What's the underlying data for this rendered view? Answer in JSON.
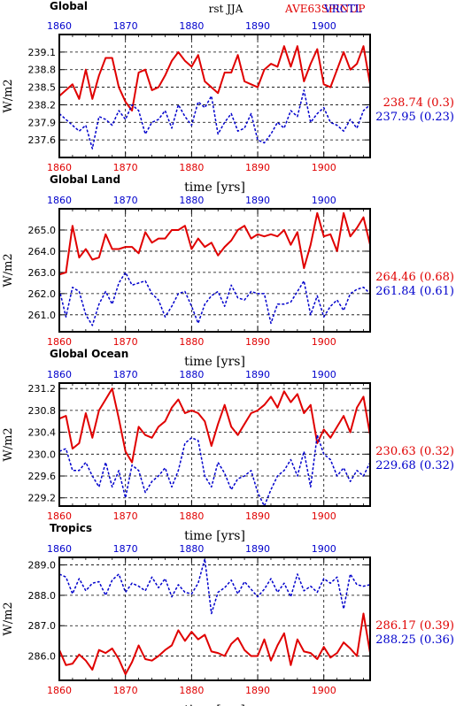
{
  "header": {
    "left_title": "Global",
    "center_title": "rst  JJA",
    "legend_red": "AVE63SPINUP",
    "legend_blue": "VRCTL"
  },
  "colors": {
    "red": "#e00000",
    "blue": "#0000cc",
    "black": "#000000"
  },
  "chart_data": [
    {
      "type": "line",
      "title": "Global",
      "xlabel": "time [yrs]",
      "ylabel": "W/m2",
      "xlim": [
        1860,
        1907
      ],
      "ylim": [
        237.3,
        239.4
      ],
      "x_ticks": [
        1860,
        1870,
        1880,
        1890,
        1900
      ],
      "y_ticks": [
        "237.6",
        "237.9",
        "238.2",
        "238.5",
        "238.8",
        "239.1"
      ],
      "grid": true,
      "stats": [
        {
          "color": "red",
          "text": "238.74 (0.3)"
        },
        {
          "color": "blue",
          "text": "237.95 (0.23)"
        }
      ],
      "series": [
        {
          "color": "red",
          "style": "solid",
          "start": 1860,
          "values": [
            238.35,
            238.45,
            238.55,
            238.3,
            238.8,
            238.3,
            238.7,
            239.0,
            239.0,
            238.5,
            238.25,
            238.1,
            238.75,
            238.8,
            238.45,
            238.5,
            238.7,
            238.95,
            239.1,
            238.95,
            238.85,
            239.05,
            238.6,
            238.5,
            238.4,
            238.75,
            238.75,
            239.05,
            238.6,
            238.55,
            238.5,
            238.8,
            238.9,
            238.85,
            239.2,
            238.85,
            239.2,
            238.6,
            238.9,
            239.15,
            238.55,
            238.5,
            238.8,
            239.1,
            238.8,
            238.9,
            239.2,
            238.55
          ]
        },
        {
          "color": "blue",
          "style": "dashed",
          "start": 1860,
          "values": [
            238.05,
            237.95,
            237.85,
            237.75,
            237.85,
            237.45,
            238.0,
            237.95,
            237.85,
            238.1,
            237.95,
            238.2,
            238.1,
            237.7,
            237.9,
            237.95,
            238.1,
            237.8,
            238.2,
            238.0,
            237.85,
            238.25,
            238.15,
            238.35,
            237.7,
            237.9,
            238.05,
            237.75,
            237.8,
            238.05,
            237.6,
            237.55,
            237.7,
            237.9,
            237.8,
            238.1,
            238.0,
            238.45,
            237.9,
            238.05,
            238.15,
            237.9,
            237.85,
            237.75,
            237.95,
            237.8,
            238.1,
            238.2
          ]
        }
      ]
    },
    {
      "type": "line",
      "title": "Global Land",
      "xlabel": "time [yrs]",
      "ylabel": "W/m2",
      "xlim": [
        1860,
        1907
      ],
      "ylim": [
        260.2,
        266.0
      ],
      "x_ticks": [
        1860,
        1870,
        1880,
        1890,
        1900
      ],
      "y_ticks": [
        "261.0",
        "262.0",
        "263.0",
        "264.0",
        "265.0"
      ],
      "grid": true,
      "stats": [
        {
          "color": "red",
          "text": "264.46 (0.68)"
        },
        {
          "color": "blue",
          "text": "261.84 (0.61)"
        }
      ],
      "series": [
        {
          "color": "red",
          "style": "solid",
          "start": 1860,
          "values": [
            262.9,
            263.0,
            265.2,
            263.7,
            264.1,
            263.6,
            263.7,
            264.8,
            264.1,
            264.1,
            264.2,
            264.2,
            263.9,
            264.9,
            264.4,
            264.6,
            264.6,
            265.0,
            265.0,
            265.2,
            264.1,
            264.6,
            264.2,
            264.4,
            263.8,
            264.2,
            264.5,
            265.0,
            265.2,
            264.6,
            264.8,
            264.7,
            264.8,
            264.7,
            265.0,
            264.3,
            264.9,
            263.2,
            264.3,
            265.8,
            264.7,
            264.8,
            264.0,
            265.8,
            264.7,
            265.1,
            265.6,
            264.3
          ]
        },
        {
          "color": "blue",
          "style": "dashed",
          "start": 1860,
          "values": [
            262.2,
            260.9,
            262.3,
            262.1,
            261.0,
            260.5,
            261.5,
            262.1,
            261.5,
            262.5,
            263.0,
            262.4,
            262.5,
            262.6,
            262.0,
            261.7,
            260.9,
            261.4,
            262.0,
            262.1,
            261.4,
            260.6,
            261.5,
            261.9,
            262.1,
            261.4,
            262.4,
            261.8,
            261.7,
            262.1,
            262.0,
            262.0,
            260.6,
            261.5,
            261.5,
            261.6,
            262.1,
            262.6,
            261.0,
            261.9,
            260.9,
            261.4,
            261.7,
            261.2,
            262.0,
            262.2,
            262.3,
            262.0
          ]
        }
      ]
    },
    {
      "type": "line",
      "title": "Global Ocean",
      "xlabel": "time [yrs]",
      "ylabel": "W/m2",
      "xlim": [
        1860,
        1907
      ],
      "ylim": [
        229.05,
        231.3
      ],
      "x_ticks": [
        1860,
        1870,
        1880,
        1890,
        1900
      ],
      "y_ticks": [
        "229.2",
        "229.6",
        "230.0",
        "230.4",
        "230.8",
        "231.2"
      ],
      "grid": true,
      "stats": [
        {
          "color": "red",
          "text": "230.63 (0.32)"
        },
        {
          "color": "blue",
          "text": "229.68 (0.32)"
        }
      ],
      "series": [
        {
          "color": "red",
          "style": "solid",
          "start": 1860,
          "values": [
            230.65,
            230.7,
            230.1,
            230.2,
            230.75,
            230.3,
            230.8,
            231.0,
            231.2,
            230.65,
            230.05,
            229.85,
            230.5,
            230.35,
            230.3,
            230.5,
            230.6,
            230.85,
            231.0,
            230.75,
            230.8,
            230.75,
            230.6,
            230.15,
            230.55,
            230.9,
            230.5,
            230.35,
            230.55,
            230.75,
            230.8,
            230.9,
            231.05,
            230.85,
            231.15,
            230.95,
            231.1,
            230.75,
            230.9,
            230.2,
            230.45,
            230.3,
            230.5,
            230.7,
            230.4,
            230.85,
            231.05,
            230.35
          ]
        },
        {
          "color": "blue",
          "style": "dashed",
          "start": 1860,
          "values": [
            230.05,
            230.1,
            229.7,
            229.7,
            229.85,
            229.6,
            229.4,
            229.85,
            229.4,
            229.7,
            229.2,
            229.8,
            229.7,
            229.3,
            229.5,
            229.6,
            229.75,
            229.4,
            229.7,
            230.2,
            230.3,
            230.25,
            229.6,
            229.4,
            229.85,
            229.65,
            229.35,
            229.55,
            229.6,
            229.7,
            229.3,
            229.05,
            229.35,
            229.6,
            229.7,
            229.9,
            229.6,
            230.05,
            229.4,
            230.35,
            230.0,
            229.9,
            229.6,
            229.75,
            229.5,
            229.7,
            229.6,
            229.85
          ]
        }
      ]
    },
    {
      "type": "line",
      "title": "Tropics",
      "xlabel": "time [yrs]",
      "ylabel": "W/m2",
      "xlim": [
        1860,
        1907
      ],
      "ylim": [
        285.2,
        289.25
      ],
      "x_ticks": [
        1860,
        1870,
        1880,
        1890,
        1900
      ],
      "y_ticks": [
        "286.0",
        "287.0",
        "288.0",
        "289.0"
      ],
      "grid": true,
      "stats": [
        {
          "color": "red",
          "text": "286.17 (0.39)"
        },
        {
          "color": "blue",
          "text": "288.25 (0.36)"
        }
      ],
      "series": [
        {
          "color": "red",
          "style": "solid",
          "start": 1860,
          "values": [
            286.2,
            285.7,
            285.75,
            286.05,
            285.85,
            285.55,
            286.2,
            286.1,
            286.25,
            285.9,
            285.4,
            285.8,
            286.35,
            285.9,
            285.85,
            286.0,
            286.2,
            286.35,
            286.85,
            286.5,
            286.8,
            286.55,
            286.7,
            286.15,
            286.1,
            286.0,
            286.4,
            286.6,
            286.2,
            286.0,
            286.0,
            286.55,
            285.85,
            286.35,
            286.75,
            285.7,
            286.55,
            286.15,
            286.1,
            285.9,
            286.3,
            285.95,
            286.1,
            286.45,
            286.25,
            286.0,
            287.4,
            286.1
          ]
        },
        {
          "color": "blue",
          "style": "dashed",
          "start": 1860,
          "values": [
            288.7,
            288.6,
            288.05,
            288.55,
            288.15,
            288.4,
            288.45,
            288.0,
            288.5,
            288.7,
            288.1,
            288.4,
            288.3,
            288.15,
            288.6,
            288.25,
            288.55,
            287.95,
            288.35,
            288.1,
            288.05,
            288.4,
            289.2,
            287.4,
            288.1,
            288.25,
            288.5,
            288.05,
            288.45,
            288.2,
            287.95,
            288.2,
            288.55,
            288.1,
            288.4,
            287.95,
            288.7,
            288.15,
            288.3,
            288.1,
            288.55,
            288.4,
            288.6,
            287.55,
            288.7,
            288.35,
            288.3,
            288.35
          ]
        }
      ]
    }
  ]
}
